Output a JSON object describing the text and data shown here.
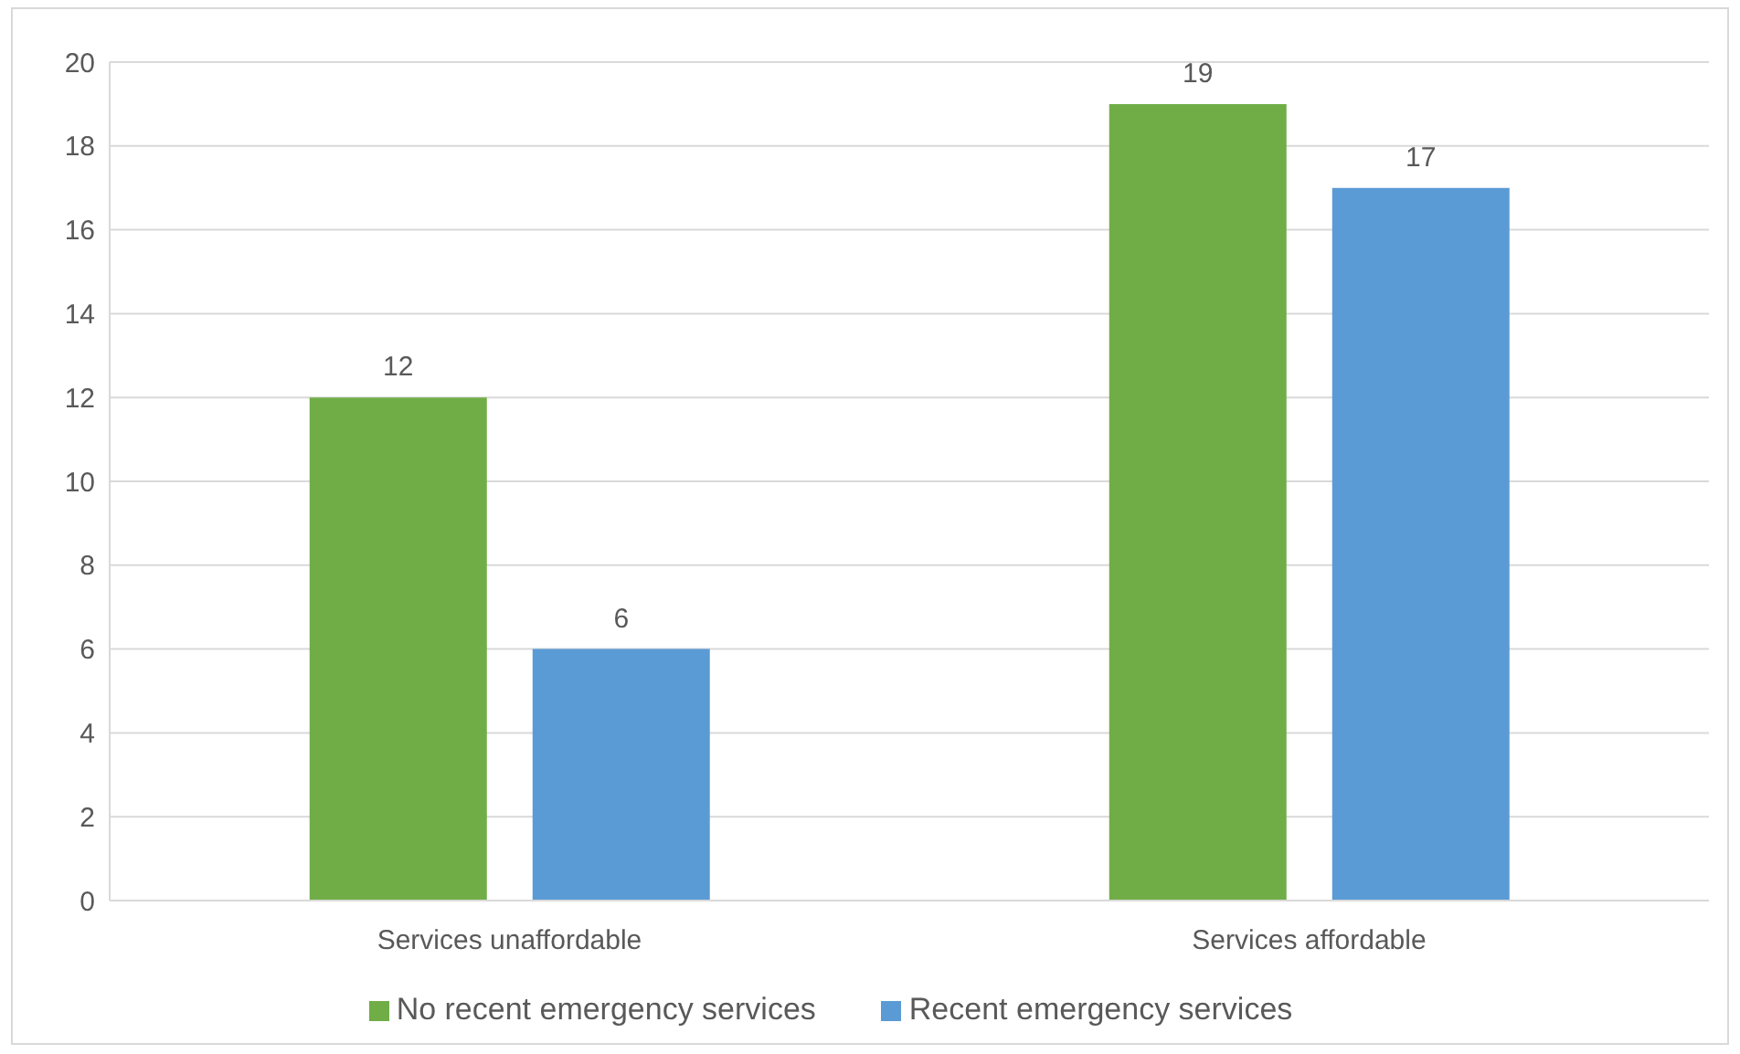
{
  "chart_data": {
    "type": "bar",
    "categories": [
      "Services unaffordable",
      "Services affordable"
    ],
    "series": [
      {
        "name": "No recent emergency services",
        "color": "#70ad47",
        "values": [
          12,
          19
        ]
      },
      {
        "name": "Recent emergency services",
        "color": "#5b9bd5",
        "values": [
          6,
          17
        ]
      }
    ],
    "ylim": [
      0,
      20
    ],
    "yticks": [
      0,
      2,
      4,
      6,
      8,
      10,
      12,
      14,
      16,
      18,
      20
    ],
    "grid": "y",
    "legend": "bottom",
    "data_labels": true
  }
}
